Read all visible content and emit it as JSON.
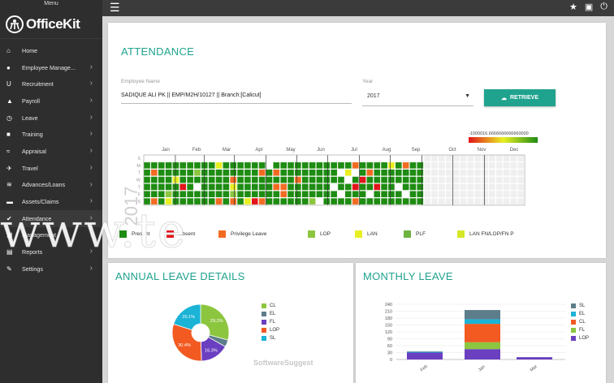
{
  "sidebar": {
    "menu_label": "Menu",
    "brand": "OfficeKit",
    "items": [
      {
        "label": "Home",
        "icon": "home-icon",
        "glyph": "⌂",
        "chevron": false
      },
      {
        "label": "Employee Manage...",
        "icon": "user-icon",
        "glyph": "●",
        "chevron": true
      },
      {
        "label": "Recruitment",
        "icon": "magnet-icon",
        "glyph": "U",
        "chevron": true
      },
      {
        "label": "Payroll",
        "icon": "money-icon",
        "glyph": "▲",
        "chevron": true
      },
      {
        "label": "Leave",
        "icon": "clock-icon",
        "glyph": "◷",
        "chevron": true
      },
      {
        "label": "Training",
        "icon": "book-icon",
        "glyph": "■",
        "chevron": true
      },
      {
        "label": "Appraisal",
        "icon": "chart-icon",
        "glyph": "≈",
        "chevron": true
      },
      {
        "label": "Travel",
        "icon": "plane-icon",
        "glyph": "✈",
        "chevron": true
      },
      {
        "label": "Advances/Loans",
        "icon": "layers-icon",
        "glyph": "≋",
        "chevron": true
      },
      {
        "label": "Assets/Claims",
        "icon": "briefcase-icon",
        "glyph": "▬",
        "chevron": true
      },
      {
        "label": "Attendance",
        "icon": "check-icon",
        "glyph": "✔",
        "chevron": true
      },
      {
        "label": "Management",
        "icon": "grid-icon",
        "glyph": "▦",
        "chevron": true
      },
      {
        "label": "Reports",
        "icon": "report-icon",
        "glyph": "▤",
        "chevron": true
      },
      {
        "label": "Settings",
        "icon": "wrench-icon",
        "glyph": "✎",
        "chevron": true
      }
    ]
  },
  "topbar": {
    "menu_icon": "hamburger-icon",
    "right_icons": [
      "star-icon",
      "profile-card-icon",
      "power-icon"
    ]
  },
  "attendance": {
    "title": "ATTENDANCE",
    "employee_label": "Employee Name",
    "employee_value": "SADIQUE ALI PK || EMP/M2H/10127 || Branch:[Calicut]",
    "year_label": "Year",
    "year_value": "2017",
    "retrieve_label": "RETRIEVE",
    "scale_label": "-1000016.6666666666660000",
    "year_big": "2017",
    "day_labels": [
      "S",
      "M",
      "T",
      "W",
      "T",
      "F",
      "S"
    ],
    "months": [
      "Jan",
      "Feb",
      "Mar",
      "Apr",
      "May",
      "Jun",
      "Jul",
      "Aug",
      "Sep",
      "Oct",
      "Nov",
      "Dec"
    ],
    "legend": [
      {
        "label": "Present",
        "color": "#1e8c12"
      },
      {
        "label": "Absent",
        "color": "#e3141b"
      },
      {
        "label": "Privilege Leave",
        "color": "#f26b22"
      },
      {
        "label": "LOP",
        "color": "#8cc63f"
      },
      {
        "label": "LAN",
        "color": "#e8ef22"
      },
      {
        "label": "PLF",
        "color": "#6db33f"
      },
      {
        "label": "LAN FN/LOP/FN P",
        "color": "#d4e825"
      }
    ],
    "colors": {
      "present": "#1e8c12",
      "absent": "#e3141b",
      "privilege": "#f26b22",
      "lop": "#8cc63f",
      "lan": "#e8ef22",
      "offday": "#ffffff",
      "future": "#efefef"
    }
  },
  "annual_leave": {
    "title": "ANNUAL LEAVE DETAILS",
    "chart_data": {
      "type": "pie",
      "labels": [
        "CL",
        "EL",
        "FL",
        "LOP",
        "SL"
      ],
      "colors": [
        "#8cc63f",
        "#5d7d8a",
        "#6a3fc0",
        "#f25a22",
        "#1bb3d6"
      ],
      "values": [
        29.2,
        4.0,
        16.3,
        30.4,
        20.1
      ],
      "data_labels": [
        "29.2%",
        "",
        "16.3%",
        "30.4%",
        "20.1%"
      ]
    }
  },
  "monthly_leave": {
    "title": "MONTHLY LEAVE",
    "chart_data": {
      "type": "bar",
      "stacked": true,
      "categories": [
        "Feb",
        "Jan",
        "Mar"
      ],
      "ylim": [
        0,
        240
      ],
      "yticks": [
        0,
        30,
        60,
        90,
        120,
        150,
        180,
        210,
        240
      ],
      "series": [
        {
          "name": "LOP",
          "color": "#6a3fc0",
          "values": [
            30,
            45,
            10
          ]
        },
        {
          "name": "FL",
          "color": "#8cc63f",
          "values": [
            0,
            30,
            0
          ]
        },
        {
          "name": "CL",
          "color": "#f25a22",
          "values": [
            0,
            80,
            0
          ]
        },
        {
          "name": "EL",
          "color": "#1bb3d6",
          "values": [
            3,
            20,
            0
          ]
        },
        {
          "name": "SL",
          "color": "#5d7d8a",
          "values": [
            2,
            40,
            0
          ]
        }
      ],
      "legend_order": [
        "SL",
        "EL",
        "CL",
        "FL",
        "LOP"
      ]
    }
  },
  "watermark_text": "www.te",
  "ss_watermark": "SoftwareSuggest"
}
